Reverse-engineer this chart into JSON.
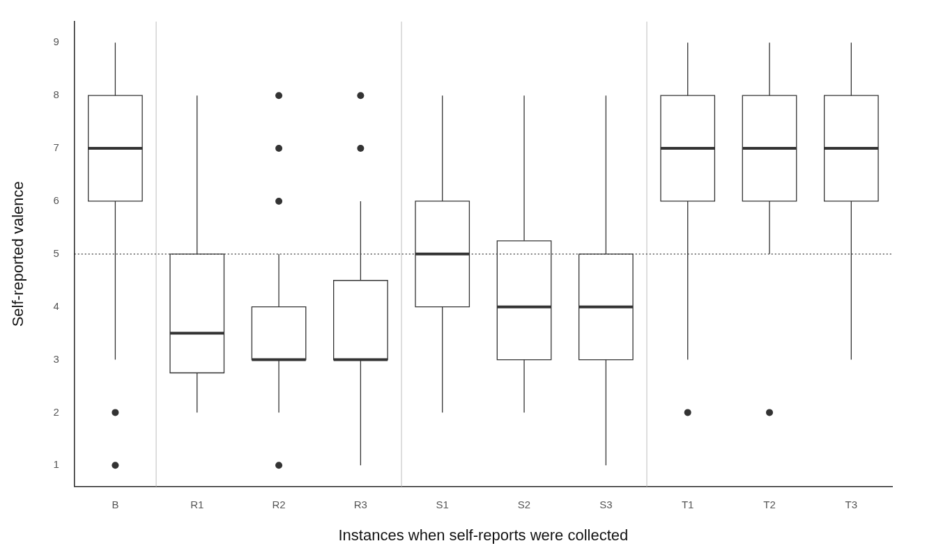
{
  "chart_data": {
    "type": "box",
    "xlabel": "Instances when self-reports were collected",
    "ylabel": "Self-reported valence",
    "categories": [
      "B",
      "R1",
      "R2",
      "R3",
      "S1",
      "S2",
      "S3",
      "T1",
      "T2",
      "T3"
    ],
    "boxes": [
      {
        "low": 3,
        "q1": 6,
        "median": 7,
        "q3": 8,
        "high": 9,
        "outliers": [
          2,
          1
        ]
      },
      {
        "low": 2,
        "q1": 2.75,
        "median": 3.5,
        "q3": 5,
        "high": 8
      },
      {
        "low": 2,
        "q1": 3,
        "median": 3,
        "q3": 4,
        "high": 5,
        "outliers": [
          8,
          7,
          6,
          1
        ]
      },
      {
        "low": 1,
        "q1": 3,
        "median": 3,
        "q3": 4.5,
        "high": 6,
        "outliers": [
          8,
          7
        ]
      },
      {
        "low": 2,
        "q1": 4,
        "median": 5,
        "q3": 6,
        "high": 8
      },
      {
        "low": 2,
        "q1": 3,
        "median": 4,
        "q3": 5.25,
        "high": 8
      },
      {
        "low": 1,
        "q1": 3,
        "median": 4,
        "q3": 5,
        "high": 8
      },
      {
        "low": 3,
        "q1": 6,
        "median": 7,
        "q3": 8,
        "high": 9,
        "outliers": [
          2
        ]
      },
      {
        "low": 5,
        "q1": 6,
        "median": 7,
        "q3": 8,
        "high": 9,
        "outliers": [
          2
        ]
      },
      {
        "low": 3,
        "q1": 6,
        "median": 7,
        "q3": 8,
        "high": 9
      }
    ],
    "color": "#333333",
    "ylim": [
      0.6,
      9.4
    ],
    "yticks": [
      1,
      2,
      3,
      4,
      5,
      6,
      7,
      8,
      9
    ],
    "grid": false,
    "legend": false,
    "ref_lines": [
      {
        "axis": "y",
        "value": 5,
        "line_style": "dotted",
        "color": "#333333"
      }
    ]
  }
}
